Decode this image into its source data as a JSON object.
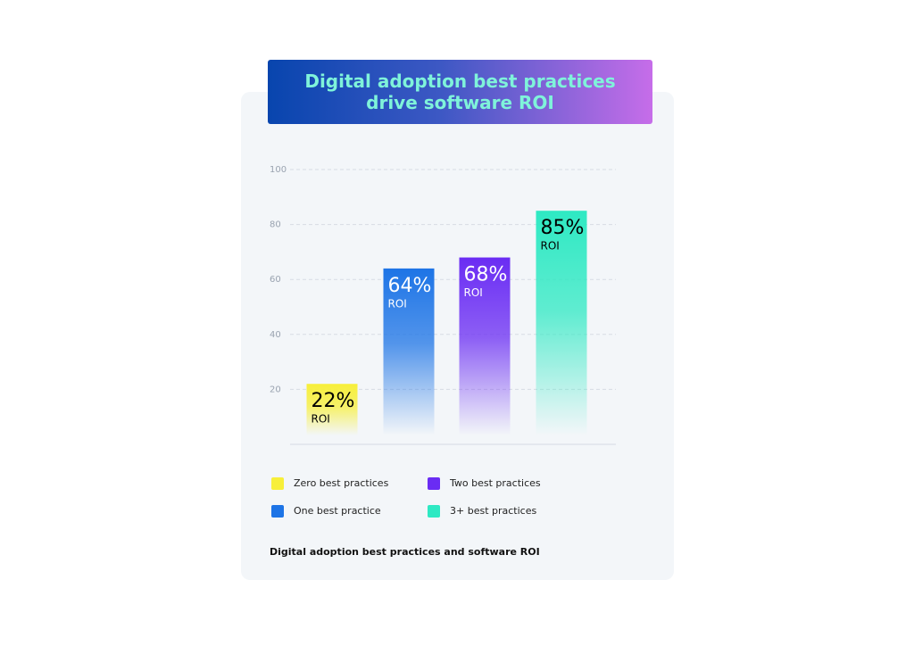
{
  "chart_data": {
    "type": "bar",
    "title": "Digital adoption best practices drive software ROI",
    "caption": "Digital adoption best practices and software ROI",
    "categories": [
      "Zero best practices",
      "One best practice",
      "Two best practices",
      "3+ best practices"
    ],
    "values": [
      22,
      64,
      68,
      85
    ],
    "value_labels": [
      "22%",
      "64%",
      "68%",
      "85%"
    ],
    "value_sublabel": "ROI",
    "colors": [
      "#f7ef3a",
      "#1d74e6",
      "#6a2cf3",
      "#2ee9c3"
    ],
    "ylim": [
      0,
      100
    ],
    "yticks": [
      20,
      40,
      60,
      80,
      100
    ],
    "grid": true
  }
}
